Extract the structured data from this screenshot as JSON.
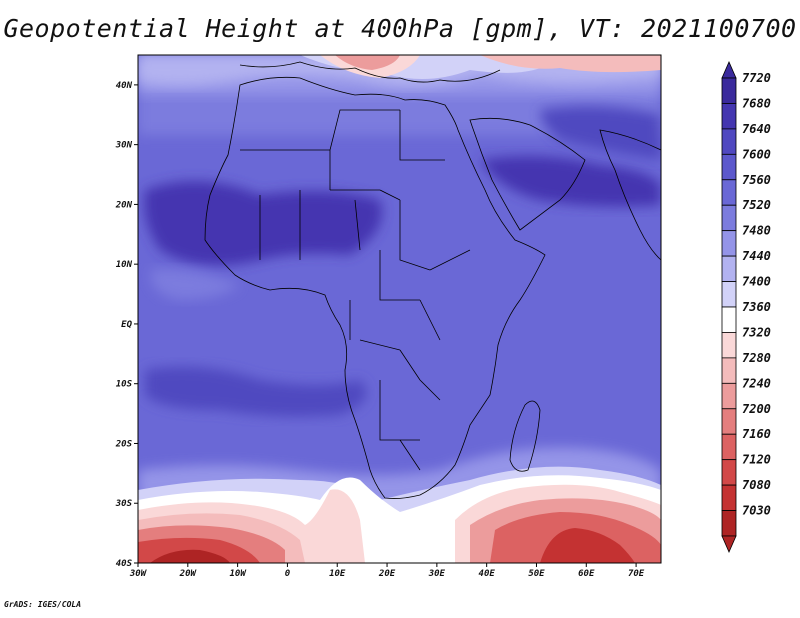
{
  "title": "Geopotential Height at 400hPa [gpm], VT: 2021100700",
  "credit": "GrADS: IGES/COLA",
  "map": {
    "lat_labels": [
      {
        "lat": 40,
        "label": "40N"
      },
      {
        "lat": 30,
        "label": "30N"
      },
      {
        "lat": 20,
        "label": "20N"
      },
      {
        "lat": 10,
        "label": "10N"
      },
      {
        "lat": 0,
        "label": "EQ"
      },
      {
        "lat": -10,
        "label": "10S"
      },
      {
        "lat": -20,
        "label": "20S"
      },
      {
        "lat": -30,
        "label": "30S"
      },
      {
        "lat": -40,
        "label": "40S"
      }
    ],
    "lon_labels": [
      {
        "lon": -30,
        "label": "30W"
      },
      {
        "lon": -20,
        "label": "20W"
      },
      {
        "lon": -10,
        "label": "10W"
      },
      {
        "lon": 0,
        "label": "0"
      },
      {
        "lon": 10,
        "label": "10E"
      },
      {
        "lon": 20,
        "label": "20E"
      },
      {
        "lon": 30,
        "label": "30E"
      },
      {
        "lon": 40,
        "label": "40E"
      },
      {
        "lon": 50,
        "label": "50E"
      },
      {
        "lon": 60,
        "label": "60E"
      },
      {
        "lon": 70,
        "label": "70E"
      }
    ],
    "lon_range": [
      -30,
      75
    ],
    "lat_range": [
      -40,
      45
    ]
  },
  "colorbar": {
    "levels": [
      "7720",
      "7680",
      "7640",
      "7600",
      "7560",
      "7520",
      "7480",
      "7440",
      "7400",
      "7360",
      "7320",
      "7280",
      "7240",
      "7200",
      "7160",
      "7120",
      "7080",
      "7030"
    ],
    "colors": [
      "#3a2a9c",
      "#4436b0",
      "#5048c0",
      "#5c58cc",
      "#6a68d6",
      "#7c7cde",
      "#9494e8",
      "#b2b2f0",
      "#d2d2f8",
      "#ffffff",
      "#fad8d8",
      "#f4bcbc",
      "#ec9c9c",
      "#e47e7e",
      "#dc6262",
      "#d24848",
      "#c43232",
      "#ae2424"
    ]
  },
  "colors": {
    "land_outline": "#000000",
    "base_field": "#6a68d6"
  }
}
